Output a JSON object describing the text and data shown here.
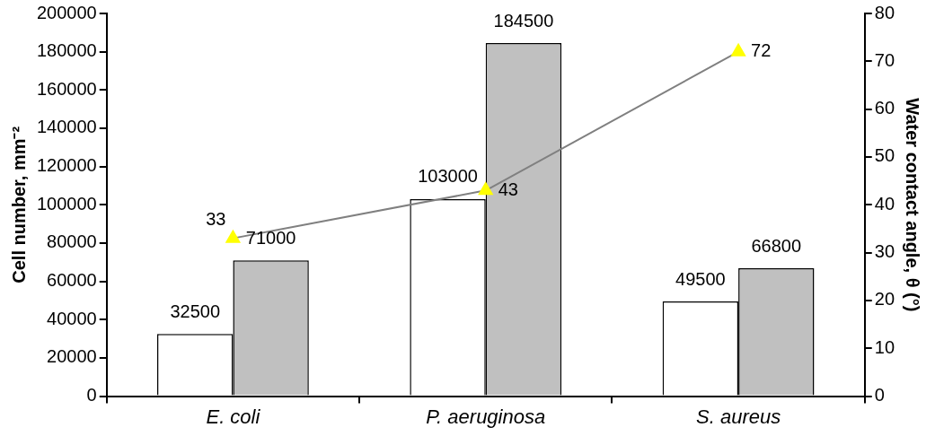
{
  "chart_data": {
    "type": "bar",
    "ylabel": "Cell number, mm⁻²",
    "y2label": "Water contact angle, θ (°)",
    "categories": [
      "E. coli",
      "P. aeruginosa",
      "S. aureus"
    ],
    "series": [
      {
        "color": "#ffffff",
        "values": [
          32500,
          103000,
          49500
        ]
      },
      {
        "color": "#c0c0c0",
        "values": [
          71000,
          184500,
          66800
        ]
      },
      {
        "type": "line",
        "axis": "y2",
        "color": "#808080",
        "colors": [
          "#ffff00",
          "#ffff00",
          "#ffff00"
        ],
        "marker": "triangle",
        "values": [
          33,
          43,
          72
        ]
      }
    ],
    "ylim": [
      0,
      200000
    ],
    "yticks": [
      0,
      20000,
      40000,
      60000,
      80000,
      100000,
      120000,
      140000,
      160000,
      180000,
      200000
    ],
    "y2lim": [
      0,
      80
    ],
    "y2ticks": [
      0,
      10,
      20,
      30,
      40,
      50,
      60,
      70,
      80
    ],
    "grid": false,
    "legend": false,
    "data_labels": true
  }
}
